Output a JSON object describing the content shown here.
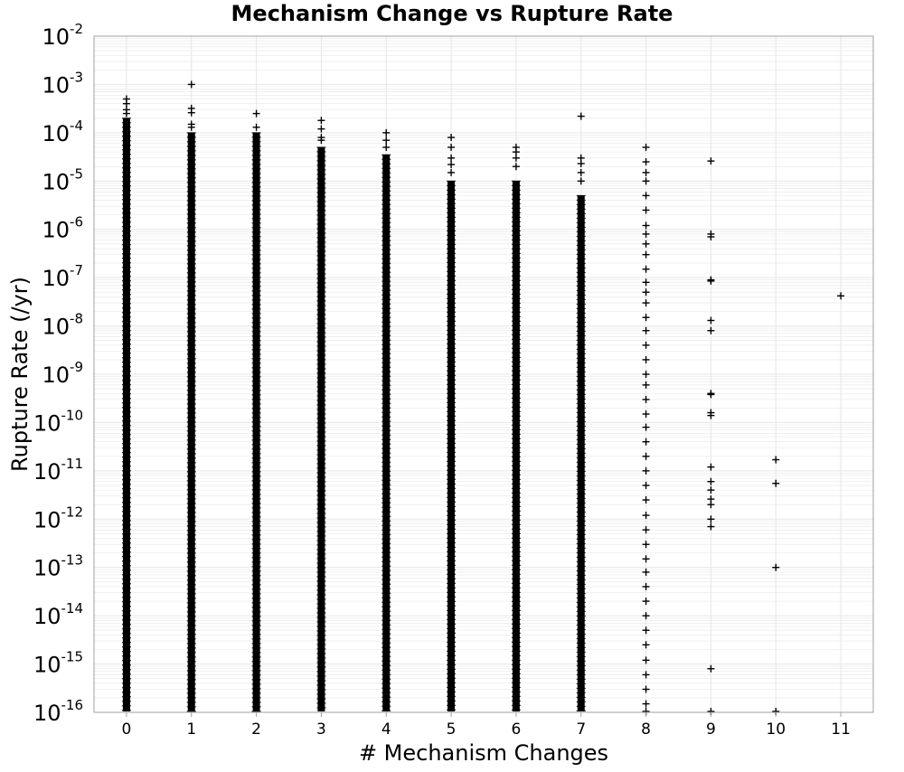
{
  "chart_data": {
    "type": "scatter",
    "title": "Mechanism Change vs Rupture Rate",
    "xlabel": "# Mechanism Changes",
    "ylabel": "Rupture Rate (/yr)",
    "xlim": [
      -0.5,
      11.5
    ],
    "x_ticks": [
      0,
      1,
      2,
      3,
      4,
      5,
      6,
      7,
      8,
      9,
      10,
      11
    ],
    "y_scale": "log",
    "ylim": [
      1e-16,
      0.01
    ],
    "y_tick_base": "10",
    "y_tick_exponents": [
      "-16",
      "-15",
      "-14",
      "-13",
      "-12",
      "-11",
      "-10",
      "-9",
      "-8",
      "-7",
      "-6",
      "-5",
      "-4",
      "-3",
      "-2"
    ],
    "grid": true,
    "marker": "+",
    "marker_color": "#000000",
    "grid_color": "#e6e6e6",
    "dense_columns": [
      {
        "x": 0,
        "min": 1e-16,
        "max": 0.0002
      },
      {
        "x": 1,
        "min": 1e-16,
        "max": 0.0001
      },
      {
        "x": 2,
        "min": 1e-16,
        "max": 0.0001
      },
      {
        "x": 3,
        "min": 1e-16,
        "max": 5e-05
      },
      {
        "x": 4,
        "min": 1e-16,
        "max": 3.5e-05
      },
      {
        "x": 5,
        "min": 1e-16,
        "max": 1e-05
      },
      {
        "x": 6,
        "min": 1e-16,
        "max": 1e-05
      },
      {
        "x": 7,
        "min": 1e-16,
        "max": 5e-06
      }
    ],
    "points": [
      {
        "x": 0,
        "y": 0.0005
      },
      {
        "x": 0,
        "y": 0.0004
      },
      {
        "x": 0,
        "y": 0.0003
      },
      {
        "x": 0,
        "y": 0.00025
      },
      {
        "x": 1,
        "y": 0.001
      },
      {
        "x": 1,
        "y": 0.00032
      },
      {
        "x": 1,
        "y": 0.00026
      },
      {
        "x": 1,
        "y": 0.00015
      },
      {
        "x": 1,
        "y": 0.00013
      },
      {
        "x": 2,
        "y": 0.00025
      },
      {
        "x": 2,
        "y": 0.00013
      },
      {
        "x": 3,
        "y": 0.00018
      },
      {
        "x": 3,
        "y": 0.00012
      },
      {
        "x": 3,
        "y": 8e-05
      },
      {
        "x": 3,
        "y": 7e-05
      },
      {
        "x": 4,
        "y": 0.0001
      },
      {
        "x": 4,
        "y": 7e-05
      },
      {
        "x": 4,
        "y": 5e-05
      },
      {
        "x": 5,
        "y": 8e-05
      },
      {
        "x": 5,
        "y": 5e-05
      },
      {
        "x": 5,
        "y": 3e-05
      },
      {
        "x": 5,
        "y": 2.2e-05
      },
      {
        "x": 5,
        "y": 1.5e-05
      },
      {
        "x": 6,
        "y": 5e-05
      },
      {
        "x": 6,
        "y": 4e-05
      },
      {
        "x": 6,
        "y": 3e-05
      },
      {
        "x": 6,
        "y": 2e-05
      },
      {
        "x": 7,
        "y": 0.00022
      },
      {
        "x": 7,
        "y": 3e-05
      },
      {
        "x": 7,
        "y": 2.3e-05
      },
      {
        "x": 7,
        "y": 1.5e-05
      },
      {
        "x": 7,
        "y": 1e-05
      },
      {
        "x": 8,
        "y": 5e-05
      },
      {
        "x": 8,
        "y": 2.5e-05
      },
      {
        "x": 8,
        "y": 1.5e-05
      },
      {
        "x": 8,
        "y": 1e-05
      },
      {
        "x": 8,
        "y": 5e-06
      },
      {
        "x": 8,
        "y": 2.5e-06
      },
      {
        "x": 8,
        "y": 1.2e-06
      },
      {
        "x": 8,
        "y": 8e-07
      },
      {
        "x": 8,
        "y": 5e-07
      },
      {
        "x": 8,
        "y": 3e-07
      },
      {
        "x": 8,
        "y": 1.5e-07
      },
      {
        "x": 8,
        "y": 8e-08
      },
      {
        "x": 8,
        "y": 5e-08
      },
      {
        "x": 8,
        "y": 3e-08
      },
      {
        "x": 8,
        "y": 1.5e-08
      },
      {
        "x": 8,
        "y": 8e-09
      },
      {
        "x": 8,
        "y": 4e-09
      },
      {
        "x": 8,
        "y": 2e-09
      },
      {
        "x": 8,
        "y": 1e-09
      },
      {
        "x": 8,
        "y": 6e-10
      },
      {
        "x": 8,
        "y": 3e-10
      },
      {
        "x": 8,
        "y": 1.5e-10
      },
      {
        "x": 8,
        "y": 8e-11
      },
      {
        "x": 8,
        "y": 4e-11
      },
      {
        "x": 8,
        "y": 2e-11
      },
      {
        "x": 8,
        "y": 1e-11
      },
      {
        "x": 8,
        "y": 5e-12
      },
      {
        "x": 8,
        "y": 2.5e-12
      },
      {
        "x": 8,
        "y": 1.2e-12
      },
      {
        "x": 8,
        "y": 6e-13
      },
      {
        "x": 8,
        "y": 3e-13
      },
      {
        "x": 8,
        "y": 1.5e-13
      },
      {
        "x": 8,
        "y": 8e-14
      },
      {
        "x": 8,
        "y": 4e-14
      },
      {
        "x": 8,
        "y": 2e-14
      },
      {
        "x": 8,
        "y": 1e-14
      },
      {
        "x": 8,
        "y": 5e-15
      },
      {
        "x": 8,
        "y": 2.5e-15
      },
      {
        "x": 8,
        "y": 1.2e-15
      },
      {
        "x": 8,
        "y": 6e-16
      },
      {
        "x": 8,
        "y": 3e-16
      },
      {
        "x": 8,
        "y": 1.5e-16
      },
      {
        "x": 8,
        "y": 1e-16
      },
      {
        "x": 9,
        "y": 2.6e-05
      },
      {
        "x": 9,
        "y": 8e-07
      },
      {
        "x": 9,
        "y": 7e-07
      },
      {
        "x": 9,
        "y": 9e-08
      },
      {
        "x": 9,
        "y": 8.5e-08
      },
      {
        "x": 9,
        "y": 1.3e-08
      },
      {
        "x": 9,
        "y": 8e-09
      },
      {
        "x": 9,
        "y": 4e-10
      },
      {
        "x": 9,
        "y": 3.8e-10
      },
      {
        "x": 9,
        "y": 1.6e-10
      },
      {
        "x": 9,
        "y": 1.4e-10
      },
      {
        "x": 9,
        "y": 1.2e-11
      },
      {
        "x": 9,
        "y": 6e-12
      },
      {
        "x": 9,
        "y": 4e-12
      },
      {
        "x": 9,
        "y": 2.6e-12
      },
      {
        "x": 9,
        "y": 2e-12
      },
      {
        "x": 9,
        "y": 1e-12
      },
      {
        "x": 9,
        "y": 7e-13
      },
      {
        "x": 9,
        "y": 8e-16
      },
      {
        "x": 9,
        "y": 1e-16
      },
      {
        "x": 10,
        "y": 1.7e-11
      },
      {
        "x": 10,
        "y": 5.5e-12
      },
      {
        "x": 10,
        "y": 1e-13
      },
      {
        "x": 10,
        "y": 1e-16
      },
      {
        "x": 11,
        "y": 4.2e-08
      }
    ]
  }
}
